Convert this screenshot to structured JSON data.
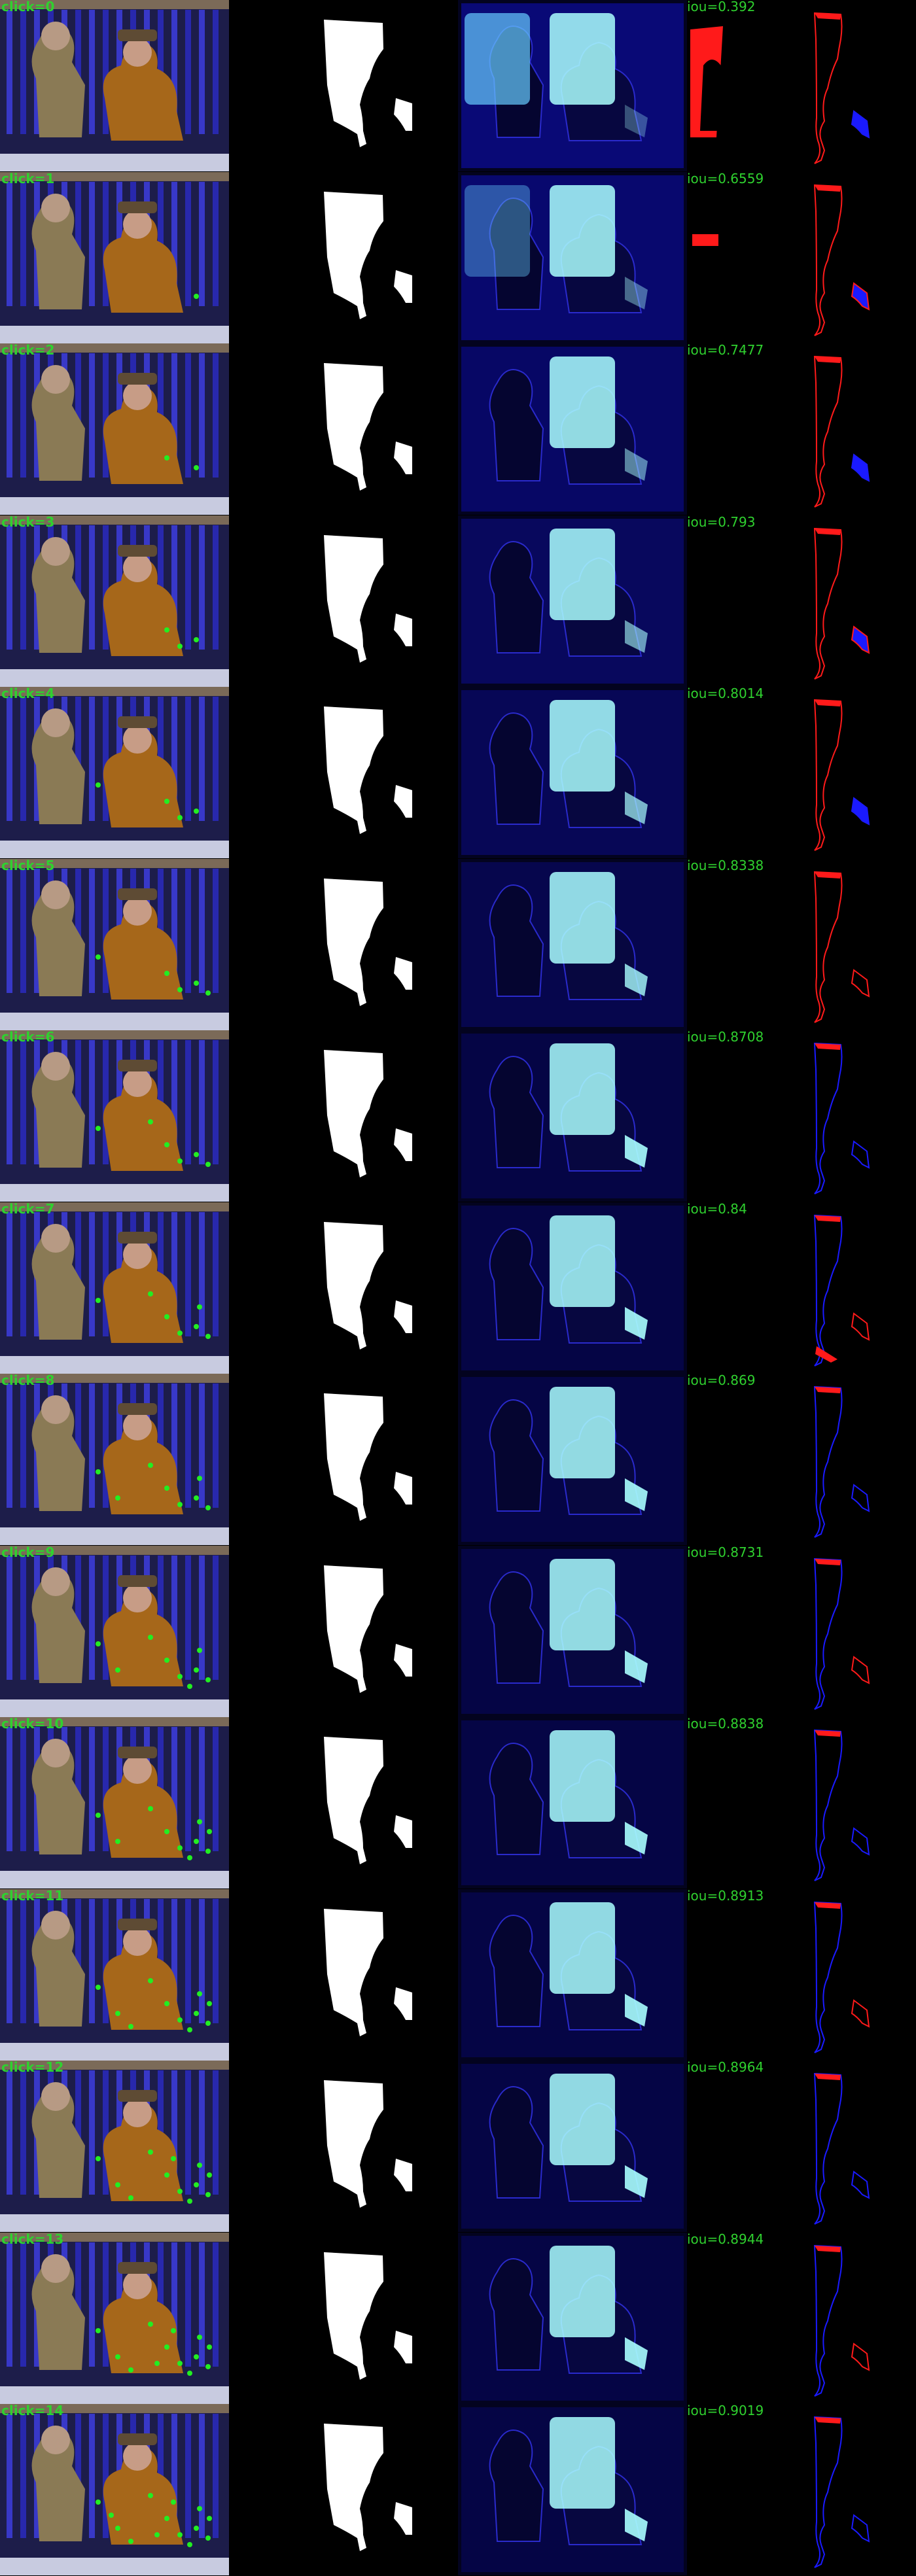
{
  "colors": {
    "background": "#000000",
    "label": "#2fd12f",
    "mask": "#ffffff",
    "false_positive": "#ff1a1a",
    "false_negative": "#1a1aff",
    "heat_low": "#0a0a80",
    "heat_high": "#aaffff"
  },
  "rows": [
    {
      "click": "click=0",
      "iou": "iou=0.392"
    },
    {
      "click": "click=1",
      "iou": "iou=0.6559"
    },
    {
      "click": "click=2",
      "iou": "iou=0.7477"
    },
    {
      "click": "click=3",
      "iou": "iou=0.793"
    },
    {
      "click": "click=4",
      "iou": "iou=0.8014"
    },
    {
      "click": "click=5",
      "iou": "iou=0.8338"
    },
    {
      "click": "click=6",
      "iou": "iou=0.8708"
    },
    {
      "click": "click=7",
      "iou": "iou=0.84"
    },
    {
      "click": "click=8",
      "iou": "iou=0.869"
    },
    {
      "click": "click=9",
      "iou": "iou=0.8731"
    },
    {
      "click": "click=10",
      "iou": "iou=0.8838"
    },
    {
      "click": "click=11",
      "iou": "iou=0.8913"
    },
    {
      "click": "click=12",
      "iou": "iou=0.8964"
    },
    {
      "click": "click=13",
      "iou": "iou=0.8944"
    },
    {
      "click": "click=14",
      "iou": "iou=0.9019"
    }
  ]
}
